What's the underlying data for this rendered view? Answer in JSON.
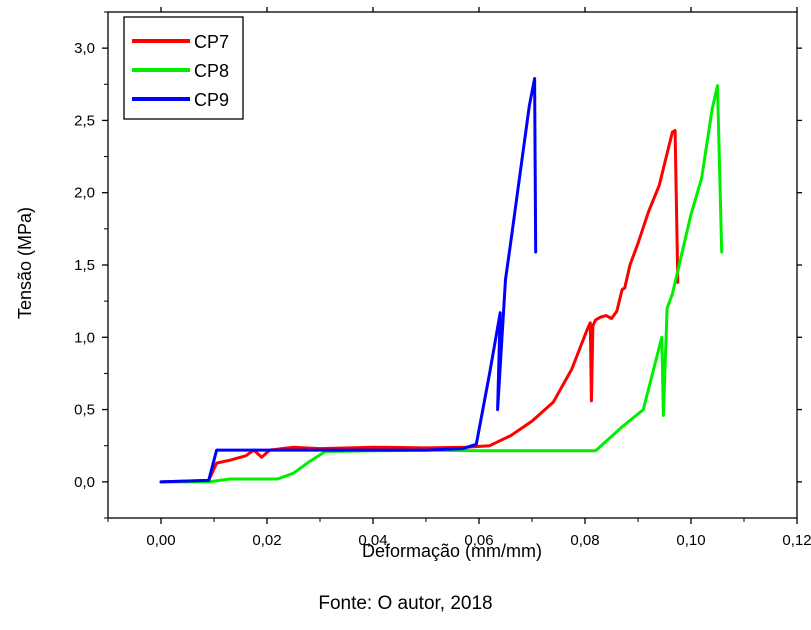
{
  "chart_data": {
    "type": "line",
    "xlabel": "Deformação (mm/mm)",
    "ylabel": "Tensão (MPa)",
    "xlim": [
      -0.01,
      0.12
    ],
    "ylim": [
      -0.25,
      3.25
    ],
    "x_ticks": [
      "0,00",
      "0,02",
      "0,04",
      "0,06",
      "0,08",
      "0,10",
      "0,12"
    ],
    "x_tick_values": [
      0,
      0.02,
      0.04,
      0.06,
      0.08,
      0.1,
      0.12
    ],
    "y_ticks": [
      "0,0",
      "0,5",
      "1,0",
      "1,5",
      "2,0",
      "2,5",
      "3,0"
    ],
    "y_tick_values": [
      0,
      0.5,
      1.0,
      1.5,
      2.0,
      2.5,
      3.0
    ],
    "legend_position": "top-left",
    "grid": false,
    "series": [
      {
        "name": "CP7",
        "color": "#ff0000",
        "points": [
          [
            0,
            0
          ],
          [
            0.009,
            0.01
          ],
          [
            0.0105,
            0.13
          ],
          [
            0.013,
            0.15
          ],
          [
            0.016,
            0.18
          ],
          [
            0.0175,
            0.22
          ],
          [
            0.019,
            0.17
          ],
          [
            0.0205,
            0.22
          ],
          [
            0.025,
            0.24
          ],
          [
            0.03,
            0.23
          ],
          [
            0.04,
            0.24
          ],
          [
            0.05,
            0.235
          ],
          [
            0.0575,
            0.24
          ],
          [
            0.062,
            0.25
          ],
          [
            0.066,
            0.32
          ],
          [
            0.07,
            0.42
          ],
          [
            0.074,
            0.55
          ],
          [
            0.0775,
            0.78
          ],
          [
            0.0805,
            1.06
          ],
          [
            0.081,
            1.1
          ],
          [
            0.0812,
            0.56
          ],
          [
            0.0815,
            1.08
          ],
          [
            0.082,
            1.12
          ],
          [
            0.083,
            1.14
          ],
          [
            0.084,
            1.15
          ],
          [
            0.085,
            1.13
          ],
          [
            0.086,
            1.18
          ],
          [
            0.087,
            1.33
          ],
          [
            0.0875,
            1.34
          ],
          [
            0.0885,
            1.5
          ],
          [
            0.09,
            1.65
          ],
          [
            0.092,
            1.87
          ],
          [
            0.094,
            2.05
          ],
          [
            0.0965,
            2.42
          ],
          [
            0.097,
            2.43
          ],
          [
            0.0975,
            1.38
          ]
        ]
      },
      {
        "name": "CP8",
        "color": "#00ee00",
        "points": [
          [
            0,
            0
          ],
          [
            0.009,
            0.0
          ],
          [
            0.013,
            0.02
          ],
          [
            0.022,
            0.02
          ],
          [
            0.025,
            0.06
          ],
          [
            0.028,
            0.14
          ],
          [
            0.031,
            0.21
          ],
          [
            0.04,
            0.215
          ],
          [
            0.05,
            0.22
          ],
          [
            0.06,
            0.215
          ],
          [
            0.07,
            0.215
          ],
          [
            0.082,
            0.215
          ],
          [
            0.087,
            0.38
          ],
          [
            0.091,
            0.5
          ],
          [
            0.0945,
            1.0
          ],
          [
            0.0948,
            0.46
          ],
          [
            0.0955,
            1.2
          ],
          [
            0.0965,
            1.3
          ],
          [
            0.1,
            1.85
          ],
          [
            0.102,
            2.1
          ],
          [
            0.104,
            2.58
          ],
          [
            0.105,
            2.74
          ],
          [
            0.1058,
            1.59
          ]
        ]
      },
      {
        "name": "CP9",
        "color": "#0000ff",
        "points": [
          [
            0,
            0
          ],
          [
            0.009,
            0.01
          ],
          [
            0.0105,
            0.22
          ],
          [
            0.02,
            0.22
          ],
          [
            0.03,
            0.22
          ],
          [
            0.04,
            0.22
          ],
          [
            0.05,
            0.22
          ],
          [
            0.057,
            0.23
          ],
          [
            0.0595,
            0.26
          ],
          [
            0.062,
            0.75
          ],
          [
            0.064,
            1.17
          ],
          [
            0.0635,
            0.5
          ],
          [
            0.065,
            1.4
          ],
          [
            0.066,
            1.66
          ],
          [
            0.068,
            2.2
          ],
          [
            0.0695,
            2.6
          ],
          [
            0.0705,
            2.79
          ],
          [
            0.0707,
            1.59
          ]
        ]
      }
    ]
  },
  "caption": "Fonte: O autor, 2018"
}
